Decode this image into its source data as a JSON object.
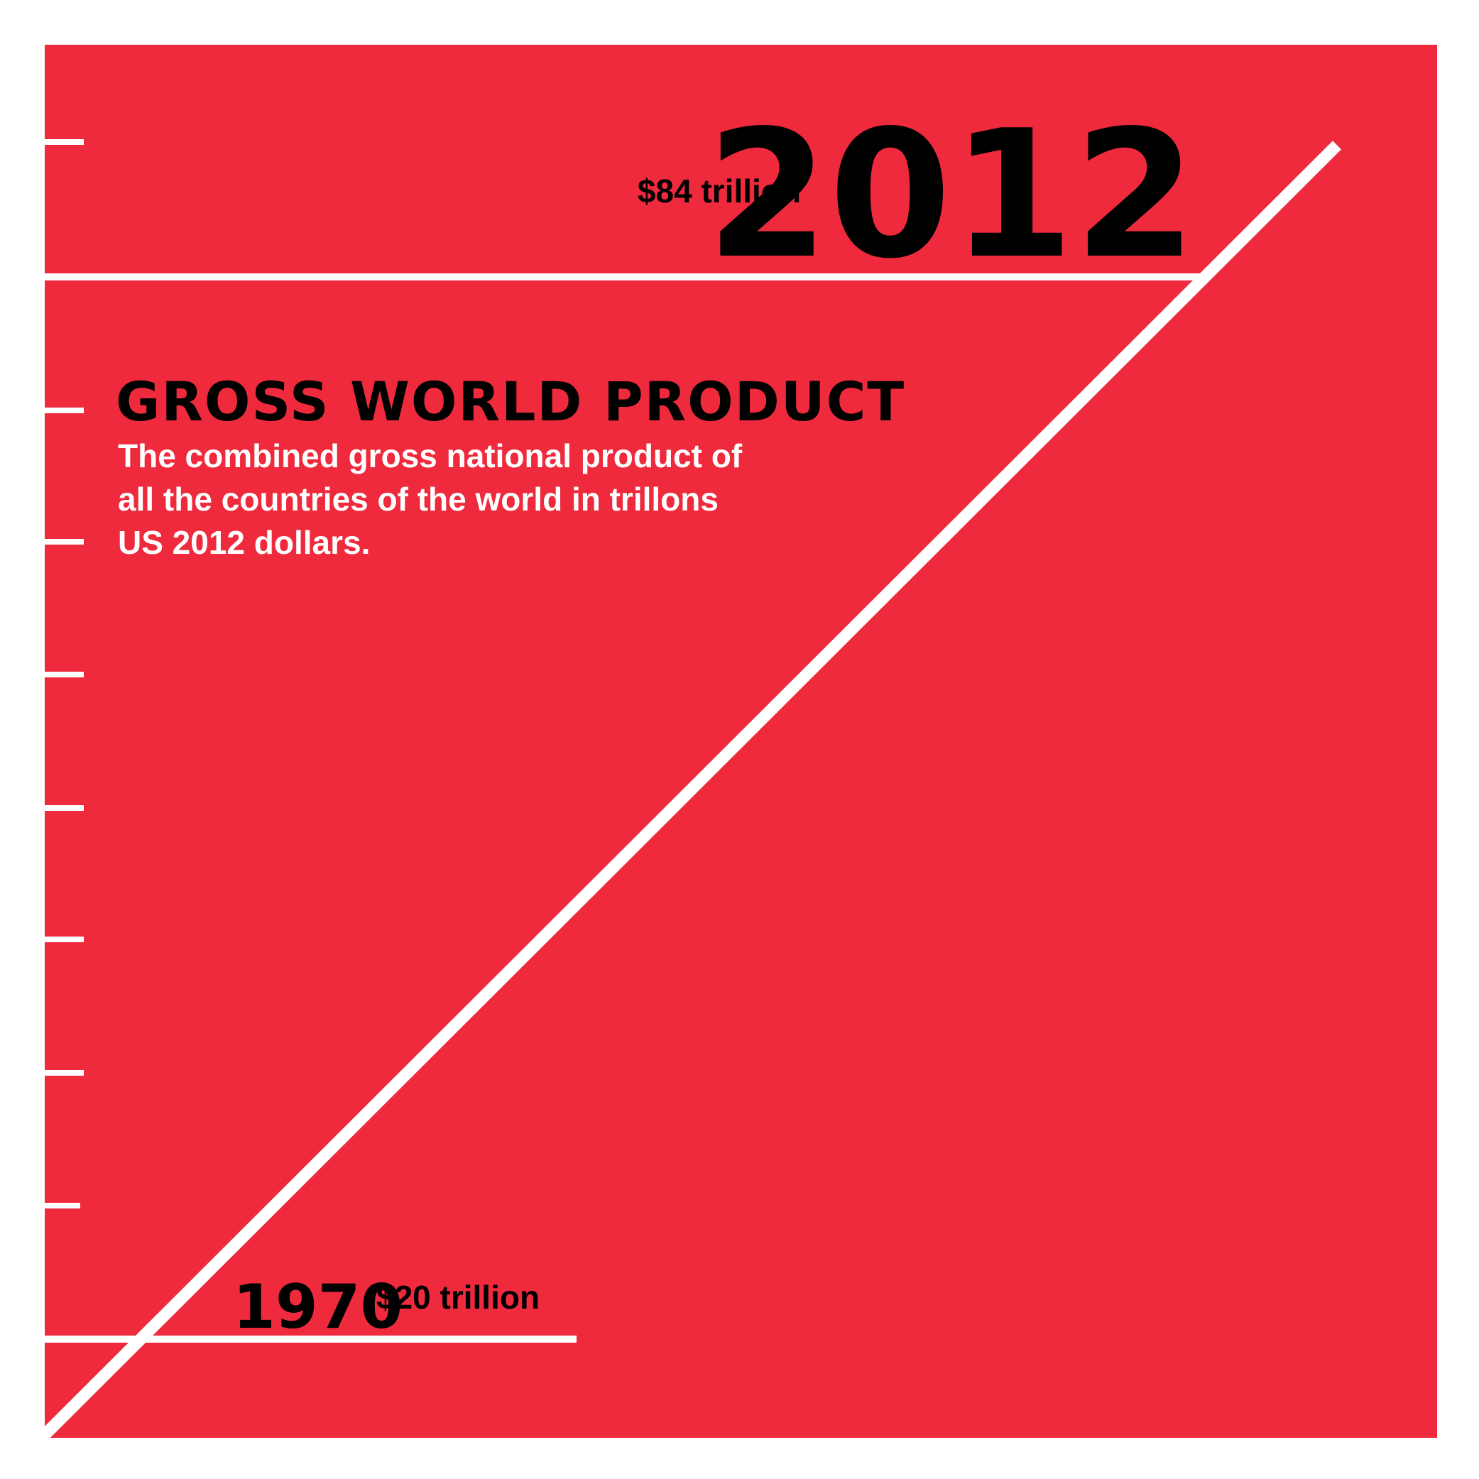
{
  "colors": {
    "background": "#ee2a3c",
    "line": "#ffffff",
    "text": "#000000",
    "subtitle_text": "#ffffff"
  },
  "header": {
    "title": "GROSS WORLD PRODUCT",
    "subtitle": "The combined gross national product of\nall the countries of the world in trillons\nUS 2012 dollars."
  },
  "chart_data": {
    "type": "line",
    "title": "GROSS WORLD PRODUCT",
    "subtitle": "The combined gross national product of all the countries of the world in trillons US 2012 dollars.",
    "xlabel": "",
    "ylabel": "",
    "grid": false,
    "legend": "none",
    "series": [
      {
        "points": [
          {
            "x": 1970,
            "y": 20,
            "year_label": "1970",
            "value_label": "$20 trillion"
          },
          {
            "x": 2012,
            "y": 84,
            "year_label": "2012",
            "value_label": "$84 trillion"
          }
        ]
      }
    ]
  }
}
